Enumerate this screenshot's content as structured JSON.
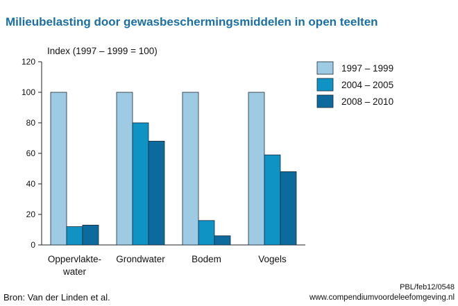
{
  "title": "Milieubelasting door gewasbeschermingsmiddelen in open teelten",
  "source": "Bron: Van der Linden et al.",
  "reference": "PBL/feb12/0548",
  "website": "www.compendiumvoordeleefomgeving.nl",
  "chart_data": {
    "type": "bar",
    "ylabel": "Index (1997 – 1999 = 100)",
    "ylim": [
      0,
      120
    ],
    "yticks": [
      "0",
      "20",
      "40",
      "60",
      "80",
      "100",
      "120"
    ],
    "categories": [
      [
        "Oppervlakte-",
        "water"
      ],
      [
        "Grondwater"
      ],
      [
        "Bodem"
      ],
      [
        "Vogels"
      ]
    ],
    "series": [
      {
        "name": "1997 – 1999",
        "color": "#9fcae3",
        "values": [
          100,
          100,
          100,
          100
        ]
      },
      {
        "name": "2004 – 2005",
        "color": "#0f92c4",
        "values": [
          12,
          80,
          16,
          59
        ]
      },
      {
        "name": "2008 – 2010",
        "color": "#0c6a9c",
        "values": [
          13,
          68,
          6,
          48
        ]
      }
    ],
    "grid": false,
    "legend_position": "right"
  }
}
